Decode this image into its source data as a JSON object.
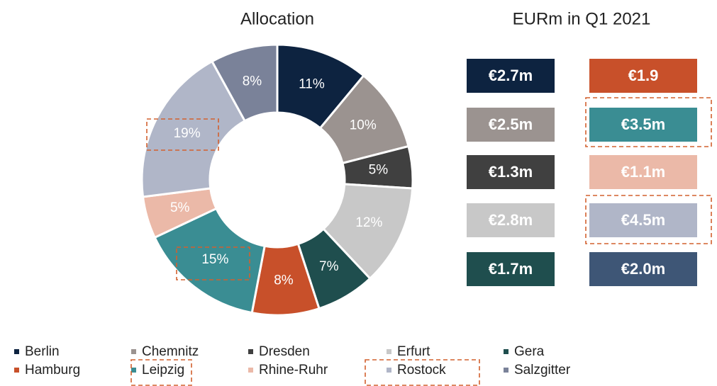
{
  "chart_data": {
    "type": "donut",
    "title": "Allocation",
    "categories": [
      "Berlin",
      "Chemnitz",
      "Dresden",
      "Erfurt",
      "Gera",
      "Hamburg",
      "Leipzig",
      "Rhine-Ruhr",
      "Rostock",
      "Salzgitter"
    ],
    "values": [
      11,
      10,
      5,
      12,
      7,
      8,
      15,
      5,
      19,
      8
    ],
    "value_labels": [
      "11%",
      "10%",
      "5%",
      "12%",
      "7%",
      "8%",
      "15%",
      "5%",
      "19%",
      "8%"
    ],
    "colors": [
      "#0d2340",
      "#9b9390",
      "#404040",
      "#c8c8c8",
      "#1f4e4e",
      "#c8502a",
      "#3a8d93",
      "#ebb9a8",
      "#b0b6c8",
      "#7a8299"
    ],
    "legend": "bottom"
  },
  "amounts_table": {
    "title": "EURm in Q1 2021",
    "cells": [
      "€2.7m",
      "€2.5m",
      "€1.3m",
      "€2.8m",
      "€1.7m",
      "€1.9",
      "€3.5m",
      "€1.1m",
      "€4.5m",
      "€2.0m"
    ],
    "colors": [
      "#0d2340",
      "#9b9390",
      "#404040",
      "#c8c8c8",
      "#1f4e4e",
      "#c8502a",
      "#3a8d93",
      "#ebb9a8",
      "#b0b6c8",
      "#3e5676"
    ]
  }
}
